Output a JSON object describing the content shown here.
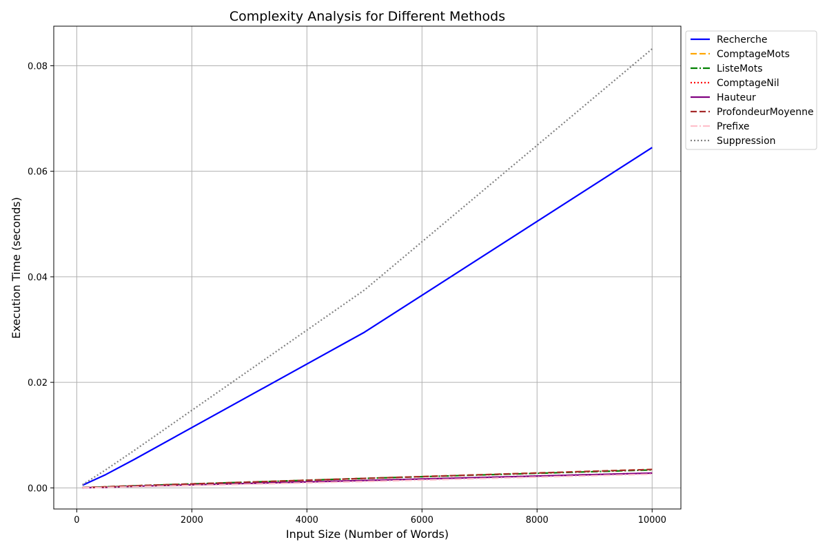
{
  "chart_data": {
    "type": "line",
    "title": "Complexity Analysis for Different Methods",
    "xlabel": "Input Size (Number of Words)",
    "ylabel": "Execution Time (seconds)",
    "xlim": [
      -400,
      10500
    ],
    "ylim": [
      -0.004,
      0.0875
    ],
    "xticks": [
      0,
      2000,
      4000,
      6000,
      8000,
      10000
    ],
    "yticks": [
      0.0,
      0.02,
      0.04,
      0.06,
      0.08
    ],
    "xtick_labels": [
      "0",
      "2000",
      "4000",
      "6000",
      "8000",
      "10000"
    ],
    "ytick_labels": [
      "0.00",
      "0.02",
      "0.04",
      "0.06",
      "0.08"
    ],
    "grid": true,
    "legend_position": "outside-top-right",
    "x": [
      100,
      500,
      1000,
      5000,
      10000
    ],
    "series": [
      {
        "name": "Recherche",
        "color": "#0000ff",
        "style": "solid",
        "values": [
          0.0005,
          0.0025,
          0.0054,
          0.0295,
          0.0645
        ]
      },
      {
        "name": "ComptageMots",
        "color": "#ffa500",
        "style": "dashed",
        "values": [
          5e-05,
          0.0002,
          0.0004,
          0.0018,
          0.0035
        ]
      },
      {
        "name": "ListeMots",
        "color": "#008000",
        "style": "dashdot",
        "values": [
          5e-05,
          0.0002,
          0.0004,
          0.0018,
          0.0034
        ]
      },
      {
        "name": "ComptageNil",
        "color": "#ff0000",
        "style": "dotted",
        "values": [
          3e-05,
          0.0001,
          0.0003,
          0.0014,
          0.0028
        ]
      },
      {
        "name": "Hauteur",
        "color": "#800080",
        "style": "solid",
        "values": [
          3e-05,
          0.0001,
          0.0003,
          0.0014,
          0.0028
        ]
      },
      {
        "name": "ProfondeurMoyenne",
        "color": "#a52a2a",
        "style": "dashed",
        "values": [
          5e-05,
          0.0002,
          0.0004,
          0.0018,
          0.0035
        ]
      },
      {
        "name": "Prefixe",
        "color": "#ffc0cb",
        "style": "dashdot",
        "values": [
          2e-05,
          8e-05,
          0.0002,
          0.0012,
          0.0026
        ]
      },
      {
        "name": "Suppression",
        "color": "#808080",
        "style": "dotted",
        "values": [
          0.0006,
          0.0034,
          0.0071,
          0.0375,
          0.0832
        ]
      }
    ]
  }
}
